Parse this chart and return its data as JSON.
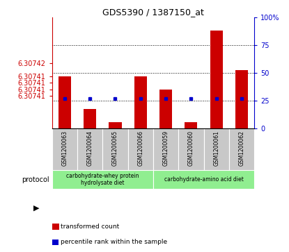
{
  "title": "GDS5390 / 1387150_at",
  "samples": [
    "GSM1200063",
    "GSM1200064",
    "GSM1200065",
    "GSM1200066",
    "GSM1200059",
    "GSM1200060",
    "GSM1200061",
    "GSM1200062"
  ],
  "transformed_counts": [
    6.307413,
    6.307408,
    6.307406,
    6.307413,
    6.307411,
    6.307406,
    6.30742,
    6.307414
  ],
  "percentile_ranks": [
    27,
    27,
    27,
    27,
    27,
    27,
    27,
    27
  ],
  "ymin": 6.307405,
  "ymax": 6.307422,
  "yticks_left_vals": [
    6.30741,
    6.307411,
    6.307412,
    6.307413,
    6.307415
  ],
  "ytick_labels_left": [
    "6.30741",
    "6.30741",
    "6.30741",
    "6.30741",
    "6.30742"
  ],
  "ytick_labels_right": [
    "0",
    "25",
    "50",
    "75",
    "100%"
  ],
  "protocols": [
    {
      "label": "carbohydrate-whey protein\nhydrolysate diet",
      "start": 0,
      "end": 4,
      "color": "#90ee90"
    },
    {
      "label": "carbohydrate-amino acid diet",
      "start": 4,
      "end": 8,
      "color": "#90ee90"
    }
  ],
  "bar_color": "#cc0000",
  "marker_color": "#0000cc",
  "bar_width": 0.5,
  "background_color": "#ffffff",
  "tick_area_color": "#c8c8c8",
  "left_axis_color": "#cc0000",
  "right_axis_color": "#0000cc",
  "title_fontsize": 9
}
